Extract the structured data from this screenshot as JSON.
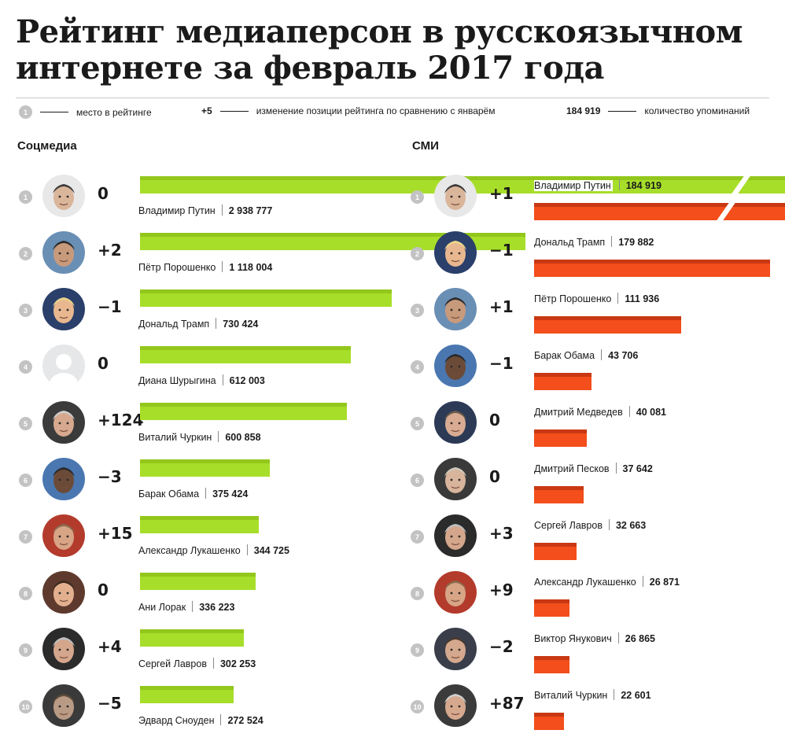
{
  "title": "Рейтинг медиаперсон в русскоязычном интернете за февраль 2017 года",
  "legend": {
    "rank_example": "1",
    "rank_text": "место в рейтинге",
    "change_example": "+5",
    "change_text": "изменение позиции рейтинга по сравнению с январём",
    "count_example": "184 919",
    "count_text": "количество упоминаний"
  },
  "colors": {
    "social_bar": "#a7de2a",
    "media_bar": "#f34e1b",
    "rank_badge": "#c3c3c3"
  },
  "social": {
    "title": "Соцмедиа",
    "rows": [
      {
        "rank": "1",
        "name": "Владимир Путин",
        "count": "2 938 777",
        "change": "0",
        "avatar": "person-photo-icon"
      },
      {
        "rank": "2",
        "name": "Пётр Порошенко",
        "count": "1 118 004",
        "change": "+2",
        "avatar": "person-photo-icon"
      },
      {
        "rank": "3",
        "name": "Дональд Трамп",
        "count": "730 424",
        "change": "−1",
        "avatar": "person-photo-icon"
      },
      {
        "rank": "4",
        "name": "Диана Шурыгина",
        "count": "612 003",
        "change": "0",
        "avatar": "placeholder-silhouette-icon"
      },
      {
        "rank": "5",
        "name": "Виталий Чуркин",
        "count": "600 858",
        "change": "+124",
        "avatar": "person-photo-icon"
      },
      {
        "rank": "6",
        "name": "Барак Обама",
        "count": "375 424",
        "change": "−3",
        "avatar": "person-photo-icon"
      },
      {
        "rank": "7",
        "name": "Александр Лукашенко",
        "count": "344 725",
        "change": "+15",
        "avatar": "person-photo-icon"
      },
      {
        "rank": "8",
        "name": "Ани Лорак",
        "count": "336 223",
        "change": "0",
        "avatar": "person-photo-icon"
      },
      {
        "rank": "9",
        "name": "Сергей Лавров",
        "count": "302 253",
        "change": "+4",
        "avatar": "person-photo-icon"
      },
      {
        "rank": "10",
        "name": "Эдвард Сноуден",
        "count": "272 524",
        "change": "−5",
        "avatar": "person-photo-icon"
      }
    ]
  },
  "media": {
    "title": "СМИ",
    "rows": [
      {
        "rank": "1",
        "name": "Владимир Путин",
        "count": "184 919",
        "change": "+1",
        "avatar": "person-photo-icon"
      },
      {
        "rank": "2",
        "name": "Дональд Трамп",
        "count": "179 882",
        "change": "−1",
        "avatar": "person-photo-icon"
      },
      {
        "rank": "3",
        "name": "Пётр Порошенко",
        "count": "111 936",
        "change": "+1",
        "avatar": "person-photo-icon"
      },
      {
        "rank": "4",
        "name": "Барак Обама",
        "count": "43 706",
        "change": "−1",
        "avatar": "person-photo-icon"
      },
      {
        "rank": "5",
        "name": "Дмитрий Медведев",
        "count": "40 081",
        "change": "0",
        "avatar": "person-photo-icon"
      },
      {
        "rank": "6",
        "name": "Дмитрий Песков",
        "count": "37 642",
        "change": "0",
        "avatar": "person-photo-icon"
      },
      {
        "rank": "7",
        "name": "Сергей Лавров",
        "count": "32 663",
        "change": "+3",
        "avatar": "person-photo-icon"
      },
      {
        "rank": "8",
        "name": "Александр Лукашенко",
        "count": "26 871",
        "change": "+9",
        "avatar": "person-photo-icon"
      },
      {
        "rank": "9",
        "name": "Виктор Янукович",
        "count": "26 865",
        "change": "−2",
        "avatar": "person-photo-icon"
      },
      {
        "rank": "10",
        "name": "Виталий Чуркин",
        "count": "22 601",
        "change": "+87",
        "avatar": "person-photo-icon"
      }
    ]
  },
  "chart_data": [
    {
      "type": "bar",
      "title": "Соцмедиа",
      "orientation": "horizontal",
      "axis_break": true,
      "categories": [
        "Владимир Путин",
        "Пётр Порошенко",
        "Дональд Трамп",
        "Диана Шурыгина",
        "Виталий Чуркин",
        "Барак Обама",
        "Александр Лукашенко",
        "Ани Лорак",
        "Сергей Лавров",
        "Эдвард Сноуден"
      ],
      "values": [
        2938777,
        1118004,
        730424,
        612003,
        600858,
        375424,
        344725,
        336223,
        302253,
        272524
      ],
      "rank_change": [
        "0",
        "+2",
        "−1",
        "0",
        "+124",
        "−3",
        "+15",
        "0",
        "+4",
        "−5"
      ]
    },
    {
      "type": "bar",
      "title": "СМИ",
      "orientation": "horizontal",
      "axis_break": true,
      "categories": [
        "Владимир Путин",
        "Дональд Трамп",
        "Пётр Порошенко",
        "Барак Обама",
        "Дмитрий Медведев",
        "Дмитрий Песков",
        "Сергей Лавров",
        "Александр Лукашенко",
        "Виктор Янукович",
        "Виталий Чуркин"
      ],
      "values": [
        184919,
        179882,
        111936,
        43706,
        40081,
        37642,
        32663,
        26871,
        26865,
        22601
      ],
      "rank_change": [
        "+1",
        "−1",
        "+1",
        "−1",
        "0",
        "0",
        "+3",
        "+9",
        "−2",
        "+87"
      ]
    }
  ]
}
